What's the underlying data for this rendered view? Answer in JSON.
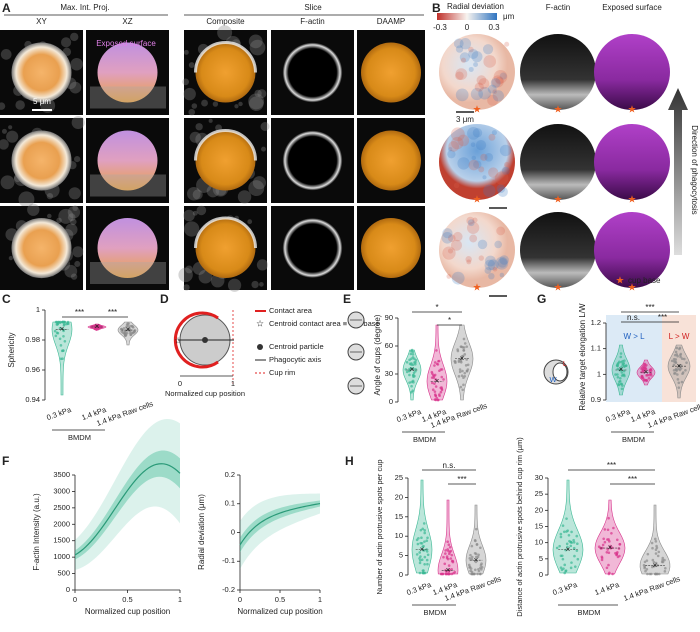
{
  "panel_a": {
    "label": "A",
    "group_mip": "Max. Int. Proj.",
    "group_slice": "Slice",
    "columns": [
      "XY",
      "XZ",
      "Composite",
      "F-actin",
      "DAAMP"
    ],
    "overlay": "Exposed surface",
    "scale_bar": "5 μm"
  },
  "panel_b": {
    "label": "B",
    "columns": [
      "Radial deviation",
      "F-actin",
      "Exposed surface"
    ],
    "colorbar_unit": "μm",
    "colorbar_ticks": [
      "-0.3",
      "0",
      "0.3"
    ],
    "scale_bar": "3 μm",
    "arrow_label": "Direction of phagocytosis",
    "legend": "cup base"
  },
  "panel_c": {
    "label": "C",
    "ylabel": "Sphericity",
    "yticks": [
      "0.94",
      "0.96",
      "0.98",
      "1"
    ],
    "categories": [
      "0.3 kPa",
      "1.4 kPa",
      "1.4 kPa Raw cells"
    ],
    "group": "BMDM",
    "significance": [
      "***",
      "***"
    ]
  },
  "panel_d": {
    "label": "D",
    "legend": [
      "Contact area",
      "Centroid contact area ≡ cup base",
      "Centroid particle",
      "Phagocytic axis",
      "Cup rim"
    ],
    "xlabel": "Normalized cup position",
    "xticks": [
      "0",
      "1"
    ]
  },
  "panel_e": {
    "label": "E",
    "ylabel": "Angle of cups (degree)",
    "yticks": [
      "0",
      "30",
      "60",
      "90"
    ],
    "categories": [
      "0.3 kPa",
      "1.4 kPa",
      "1.4 kPa Raw cells"
    ],
    "group": "BMDM",
    "significance": [
      "*",
      "*"
    ]
  },
  "panel_f": {
    "label": "F",
    "plots": [
      {
        "ylabel": "F-actin Intensity (a.u.)",
        "yticks": [
          "0",
          "500",
          "1000",
          "1500",
          "2000",
          "2500",
          "3000",
          "3500"
        ],
        "xlabel": "Normalized cup position",
        "xticks": [
          "0",
          "0.5",
          "1"
        ]
      },
      {
        "ylabel": "Radial deviation (μm)",
        "yticks": [
          "-0.2",
          "-0.1",
          "0",
          "0.1",
          "0.2"
        ],
        "xlabel": "Normalized cup position",
        "xticks": [
          "0",
          "0.5",
          "1"
        ]
      }
    ]
  },
  "panel_g": {
    "label": "G",
    "ylabel": "Relative target elongation L/W",
    "yticks": [
      "0.9",
      "1",
      "1.1",
      "1.2"
    ],
    "categories": [
      "0.3 kPa",
      "1.4 kPa",
      "1.4 kPa Raw cells"
    ],
    "group": "BMDM",
    "regions": [
      "W > L",
      "L > W"
    ],
    "icon_labels": [
      "L",
      "W"
    ],
    "significance": [
      "n.s.",
      "***",
      "***"
    ]
  },
  "panel_h": {
    "label": "H",
    "categories": [
      "0.3 kPa",
      "1.4 kPa",
      "1.4 kPa Raw cells"
    ],
    "group": "BMDM",
    "plots": [
      {
        "ylabel": "Number of actin protrusive spots per cup",
        "yticks": [
          "0",
          "5",
          "10",
          "15",
          "20",
          "25"
        ],
        "significance": [
          "n.s.",
          "***"
        ]
      },
      {
        "ylabel": "Distance of actin protrusive spots behind cup rim (µm)",
        "yticks": [
          "0",
          "5",
          "10",
          "15",
          "20",
          "25",
          "30"
        ],
        "significance": [
          "***",
          "***"
        ]
      }
    ]
  }
}
